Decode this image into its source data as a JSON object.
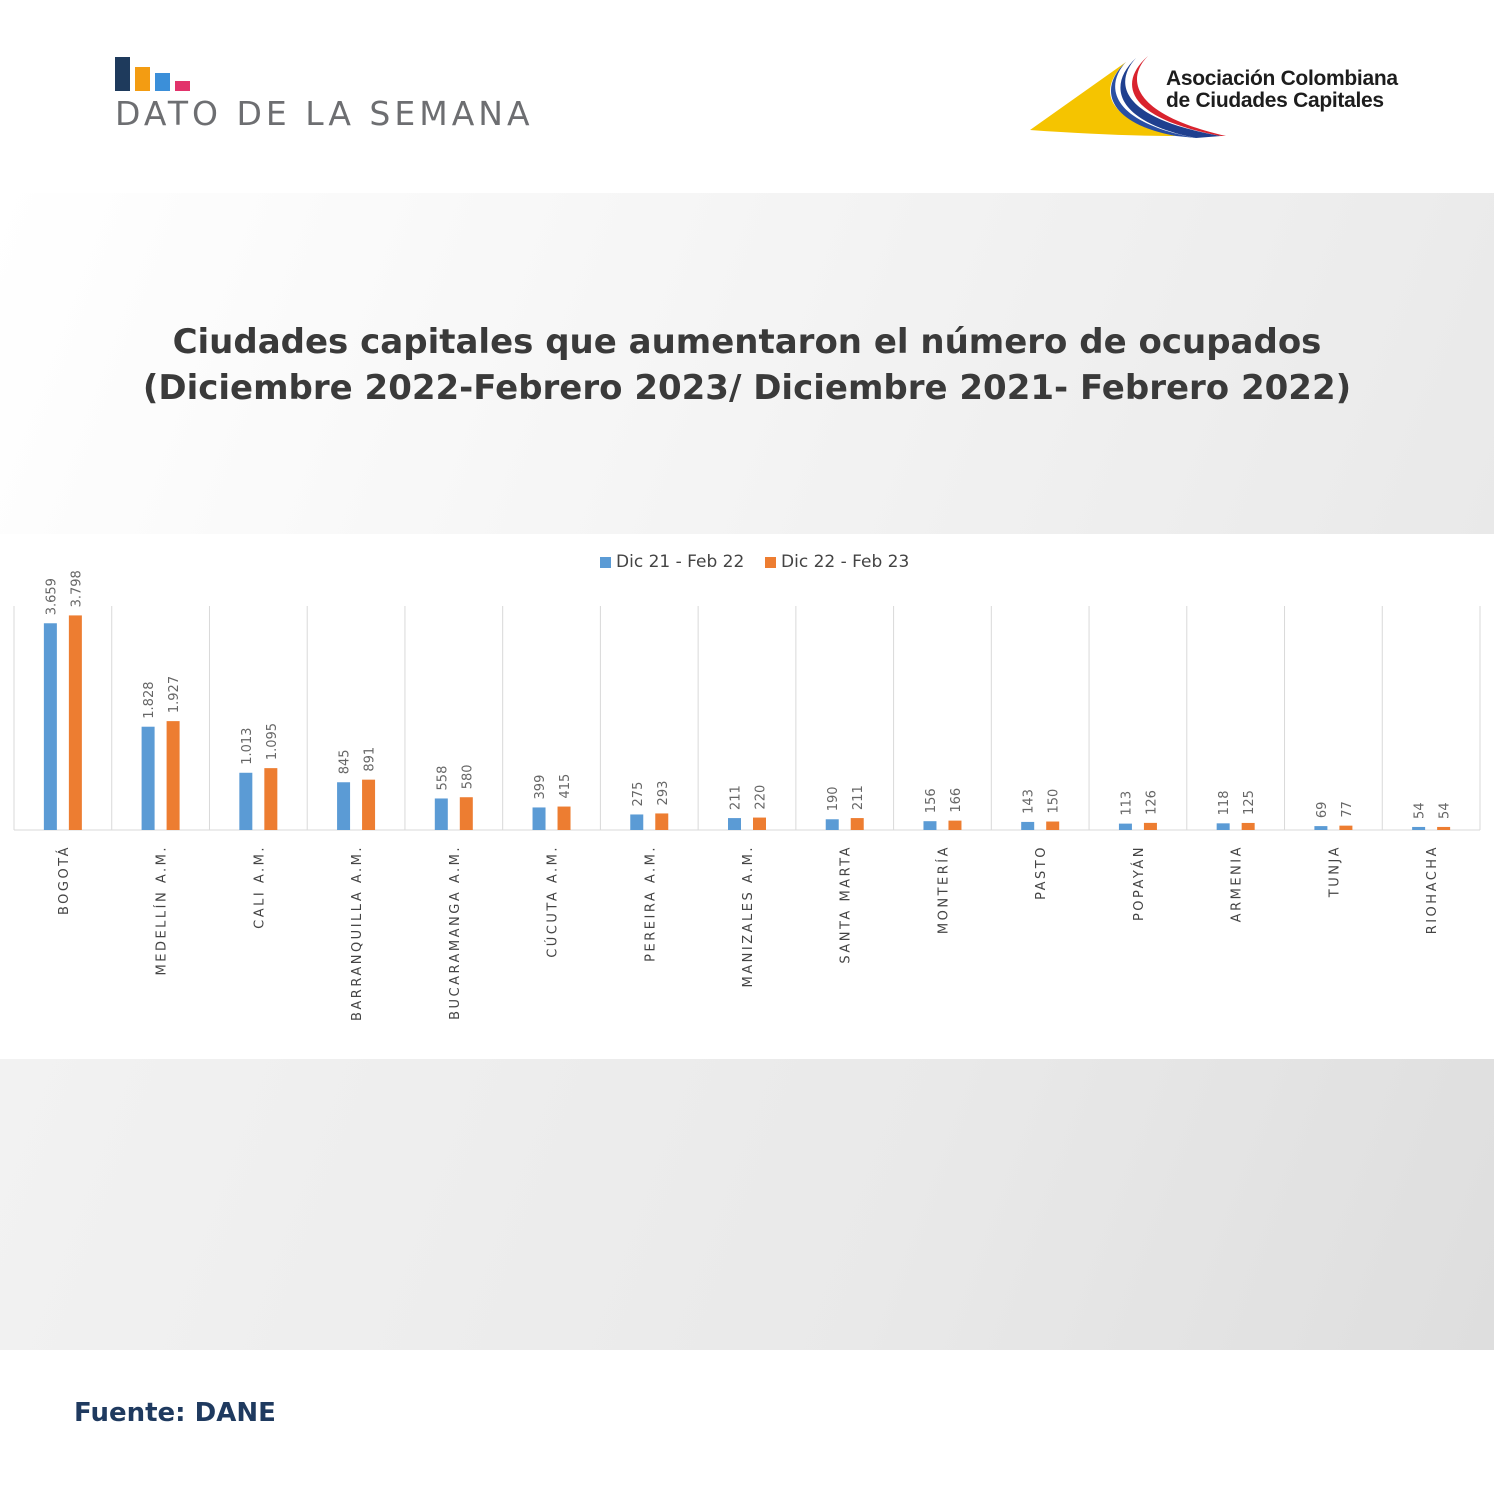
{
  "header": {
    "brand_text": "DATO DE LA SEMANA",
    "org_name_line1": "Asociación Colombiana",
    "org_name_line2": "de Ciudades Capitales"
  },
  "title": {
    "line1": "Ciudades capitales que aumentaron el número de ocupados",
    "line2": "(Diciembre 2022-Febrero 2023/ Diciembre 2021- Febrero 2022)"
  },
  "footer": {
    "source": "Fuente: DANE"
  },
  "colors": {
    "series1": "#5b9bd5",
    "series2": "#ed7d31",
    "brand_dark_blue": "#1e3a5c",
    "brand_orange": "#f39c12",
    "brand_blue": "#3b8fd9",
    "brand_pink": "#e2336b"
  },
  "chart_data": {
    "type": "bar",
    "title": "",
    "xlabel": "",
    "ylabel": "",
    "legend_position": "top-center",
    "grid": "vertical category separators",
    "categories": [
      "BOGOTÁ",
      "MEDELLÍN A.M.",
      "CALI A.M.",
      "BARRANQUILLA A.M.",
      "BUCARAMANGA A.M.",
      "CÚCUTA A.M.",
      "PEREIRA A.M.",
      "MANIZALES A.M.",
      "SANTA MARTA",
      "MONTERÍA",
      "PASTO",
      "POPAYÁN",
      "ARMENIA",
      "TUNJA",
      "RIOHACHA"
    ],
    "series": [
      {
        "name": "Dic 21 - Feb 22",
        "values": [
          3659,
          1828,
          1013,
          845,
          558,
          399,
          275,
          211,
          190,
          156,
          143,
          113,
          118,
          69,
          54
        ],
        "labels": [
          "3.659",
          "1.828",
          "1.013",
          "845",
          "558",
          "399",
          "275",
          "211",
          "190",
          "156",
          "143",
          "113",
          "118",
          "69",
          "54"
        ]
      },
      {
        "name": "Dic 22 - Feb 23",
        "values": [
          3798,
          1927,
          1095,
          891,
          580,
          415,
          293,
          220,
          211,
          166,
          150,
          126,
          125,
          77,
          54
        ],
        "labels": [
          "3.798",
          "1.927",
          "1.095",
          "891",
          "580",
          "415",
          "293",
          "220",
          "211",
          "166",
          "150",
          "126",
          "125",
          "77",
          "54"
        ]
      }
    ],
    "ylim": [
      0,
      3900
    ]
  }
}
